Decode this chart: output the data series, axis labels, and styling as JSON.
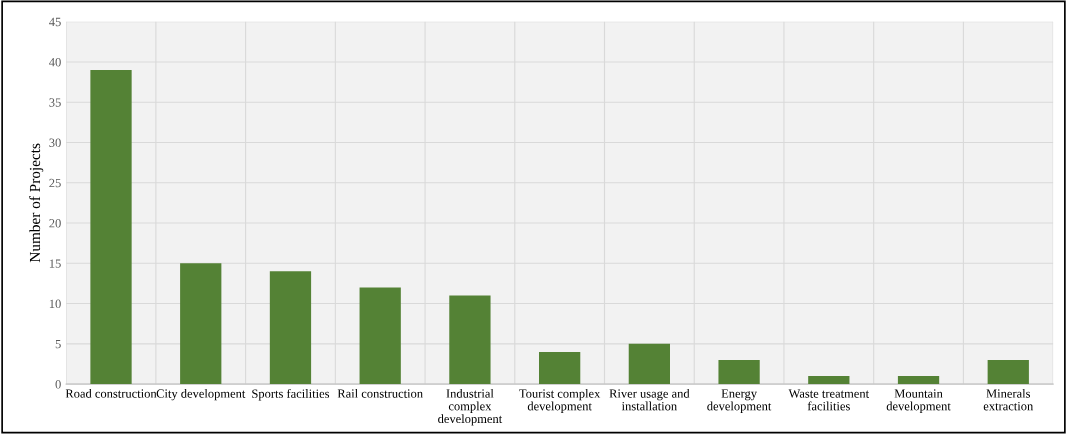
{
  "chart_data": {
    "type": "bar",
    "ylabel": "Number of Projects",
    "categories": [
      "Road construction",
      "City development",
      "Sports facilities",
      "Rail construction",
      "Industrial\ncomplex\ndevelopment",
      "Tourist complex\ndevelopment",
      "River usage and\ninstallation",
      "Energy\ndevelopment",
      "Waste treatment\nfacilities",
      "Mountain\ndevelopment",
      "Minerals\nextraction"
    ],
    "values": [
      39,
      15,
      14,
      12,
      11,
      4,
      5,
      3,
      1,
      1,
      3
    ],
    "color": "#548235",
    "ylim": [
      0,
      45
    ],
    "yticks": [
      0,
      5,
      10,
      15,
      20,
      25,
      30,
      35,
      40,
      45
    ],
    "grid": true
  }
}
